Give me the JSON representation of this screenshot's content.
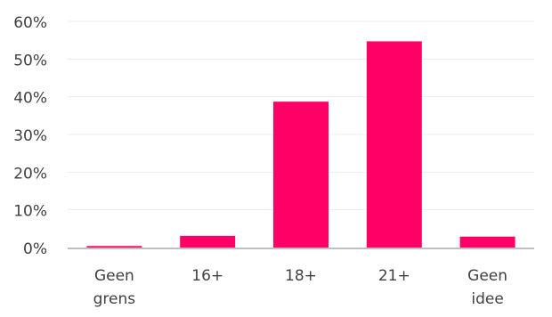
{
  "chart_data": {
    "type": "bar",
    "categories": [
      [
        "Geen",
        "grens"
      ],
      [
        "16+"
      ],
      [
        "18+"
      ],
      [
        "21+"
      ],
      [
        "Geen",
        "idee"
      ]
    ],
    "values": [
      0.4,
      3.1,
      38.7,
      54.7,
      2.9
    ],
    "ylim": [
      0,
      60
    ],
    "yticks": [
      0,
      10,
      20,
      30,
      40,
      50,
      60
    ],
    "ytick_format": "{v}%",
    "grid": true,
    "legend": "none",
    "colors": {
      "bar": "#ff0066",
      "grid": "#ececec",
      "axis": "#bfbfbf",
      "text": "#404040"
    }
  }
}
